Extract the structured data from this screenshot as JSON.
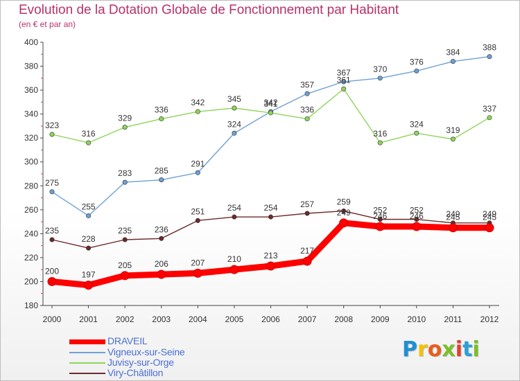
{
  "header": {
    "title": "Evolution de la Dotation Globale de Fonctionnement par Habitant",
    "subtitle": "(en € et par an)"
  },
  "brand": {
    "letters": [
      "P",
      "r",
      "o",
      "x",
      "i",
      "t",
      "i"
    ],
    "colors": [
      "#1e8fd6",
      "#f2c200",
      "#e85d1f",
      "#7abf2b",
      "#e23f2b",
      "#2aa0d8",
      "#7abf2b"
    ]
  },
  "chart_data": {
    "type": "line",
    "title": "Evolution de la Dotation Globale de Fonctionnement par Habitant",
    "subtitle": "(en € et par an)",
    "xlabel": "",
    "ylabel": "",
    "ylim": [
      180,
      400
    ],
    "yticks": [
      180,
      200,
      220,
      240,
      260,
      280,
      300,
      320,
      340,
      360,
      380,
      400
    ],
    "x": [
      "2000",
      "2001",
      "2002",
      "2003",
      "2004",
      "2005",
      "2006",
      "2007",
      "2008",
      "2009",
      "2010",
      "2011",
      "2012"
    ],
    "grid": false,
    "legend_position": "bottom-left",
    "series": [
      {
        "name": "DRAVEIL",
        "color": "#ff0000",
        "values": [
          200,
          197,
          205,
          206,
          207,
          210,
          213,
          217,
          249,
          246,
          246,
          245,
          245
        ]
      },
      {
        "name": "Vigneux-sur-Seine",
        "color": "#6ea0d4",
        "values": [
          275,
          255,
          283,
          285,
          291,
          324,
          342,
          357,
          367,
          370,
          376,
          384,
          388
        ]
      },
      {
        "name": "Juvisy-sur-Orge",
        "color": "#8ed45a",
        "values": [
          323,
          316,
          329,
          336,
          342,
          345,
          341,
          336,
          361,
          316,
          324,
          319,
          337
        ]
      },
      {
        "name": "Viry-Châtillon",
        "color": "#6b2a2a",
        "values": [
          235,
          228,
          235,
          236,
          251,
          254,
          254,
          257,
          259,
          252,
          252,
          249,
          249
        ]
      }
    ]
  }
}
